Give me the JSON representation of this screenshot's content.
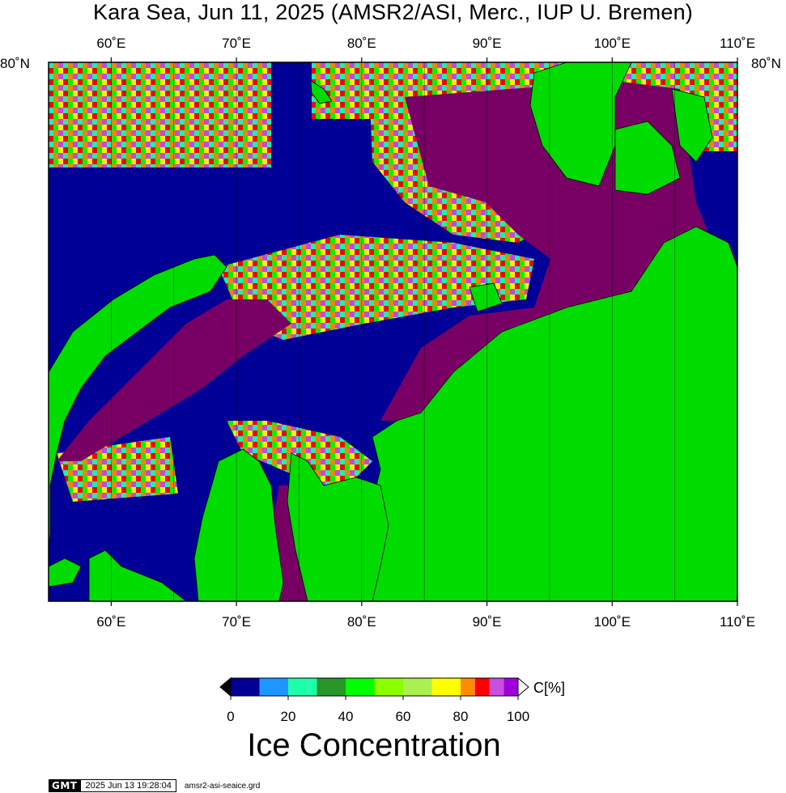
{
  "title": "Kara Sea, Jun 11, 2025 (AMSR2/ASI, Merc., IUP U. Bremen)",
  "map": {
    "lon_range": [
      55,
      110
    ],
    "lat_top_label": "80˚N",
    "lon_labels": [
      "60˚E",
      "70˚E",
      "80˚E",
      "90˚E",
      "100˚E",
      "110˚E"
    ],
    "lon_values": [
      60,
      70,
      80,
      90,
      100,
      110
    ],
    "gridline_lons": [
      60,
      65,
      70,
      75,
      80,
      85,
      90,
      95,
      100,
      105
    ],
    "colors": {
      "open_water": "#000096",
      "land": "#00dc00",
      "high_ice": "#780064",
      "frame": "#000000"
    }
  },
  "colorbar": {
    "title": "Ice Concentration",
    "unit": "C[%]",
    "ticks": [
      "0",
      "20",
      "40",
      "60",
      "80",
      "100"
    ],
    "colors": [
      "#000096",
      "#1e96ff",
      "#1effaa",
      "#289628",
      "#00ff00",
      "#8cff00",
      "#aaf050",
      "#ffff00",
      "#ff8c00",
      "#ff0000",
      "#c850dc",
      "#a000dc"
    ],
    "bins": [
      0,
      10,
      20,
      30,
      40,
      50,
      60,
      70,
      80,
      85,
      90,
      95,
      100
    ]
  },
  "footer": {
    "logo": "GMT",
    "timestamp": "2025 Jun 13 19:28:04",
    "grid_file": "amsr2-asi-seaice.grd"
  }
}
